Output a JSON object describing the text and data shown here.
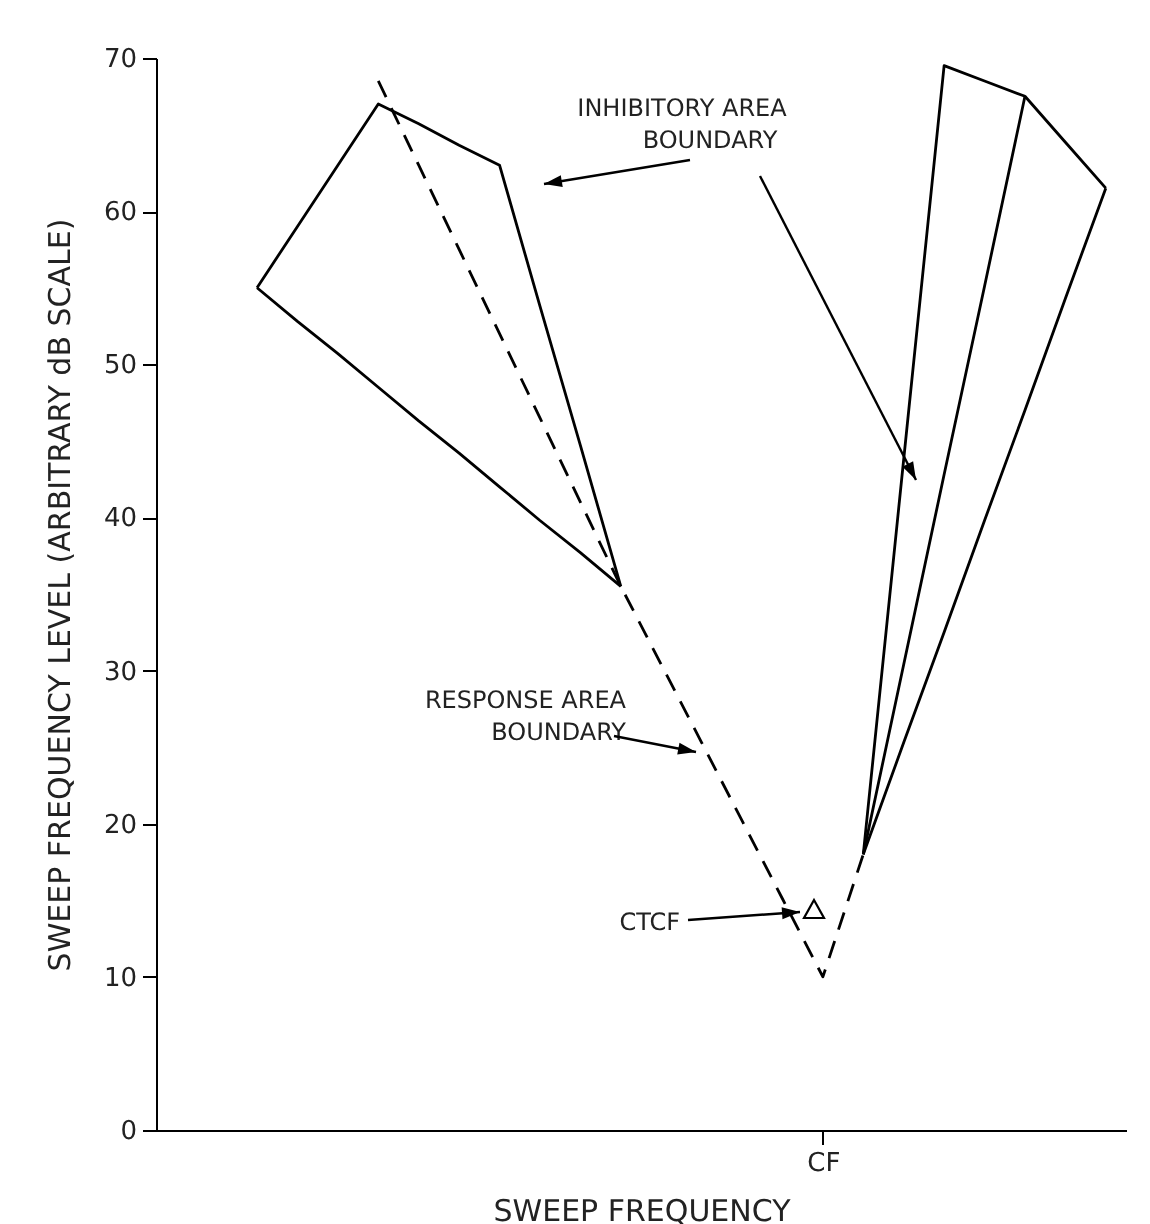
{
  "chart_data": {
    "type": "line",
    "xlabel": "SWEEP FREQUENCY",
    "ylabel": "SWEEP FREQUENCY LEVEL (ARBITRARY dB SCALE)",
    "categories": [
      null,
      null,
      null,
      null,
      null,
      null,
      null,
      null,
      null,
      null,
      null,
      null,
      null,
      null,
      null,
      null,
      "CF",
      null,
      null,
      null,
      null,
      null,
      null,
      null
    ],
    "ylim": [
      0,
      70
    ],
    "yticks": [
      0,
      10,
      20,
      30,
      40,
      50,
      60,
      70
    ],
    "series": [
      {
        "color": "#000000",
        "line_style": "dashed",
        "values": [
          null,
          null,
          null,
          null,
          null,
          68.5,
          63,
          57.5,
          52,
          46.5,
          41,
          35.5,
          30.4,
          25.3,
          20.2,
          15.1,
          10,
          18,
          null,
          null,
          null,
          null,
          null,
          null
        ]
      },
      {
        "color": "#000000",
        "line_style": "solid",
        "values": [
          null,
          null,
          55,
          59,
          63,
          67,
          65.7,
          64.3,
          63,
          53.8,
          44.7,
          35.5,
          null,
          null,
          null,
          null,
          null,
          null,
          null,
          null,
          null,
          null,
          null,
          null
        ]
      },
      {
        "color": "#000000",
        "line_style": "solid",
        "values": [
          null,
          null,
          55,
          52.8,
          50.7,
          48.5,
          46.3,
          44.2,
          42,
          39.8,
          37.7,
          35.5,
          null,
          null,
          null,
          null,
          null,
          null,
          null,
          null,
          null,
          null,
          null,
          null
        ]
      },
      {
        "color": "#000000",
        "line_style": "solid",
        "values": [
          null,
          null,
          null,
          null,
          null,
          null,
          null,
          null,
          null,
          null,
          null,
          null,
          null,
          null,
          null,
          null,
          null,
          18,
          43.8,
          69.5,
          68.5,
          67.5,
          64.5,
          61.5
        ]
      },
      {
        "color": "#000000",
        "line_style": "solid",
        "values": [
          null,
          null,
          null,
          null,
          null,
          null,
          null,
          null,
          null,
          null,
          null,
          null,
          null,
          null,
          null,
          null,
          null,
          18,
          30.4,
          42.8,
          55.1,
          67.5,
          null,
          null
        ]
      },
      {
        "color": "#000000",
        "line_style": "solid",
        "values": [
          null,
          null,
          null,
          null,
          null,
          null,
          null,
          null,
          null,
          null,
          null,
          null,
          null,
          null,
          null,
          null,
          null,
          18,
          25.3,
          32.5,
          39.8,
          47,
          54.3,
          61.5
        ]
      }
    ],
    "annotations": [
      "INHIBITORY AREA BOUNDARY",
      "RESPONSE AREA BOUNDARY",
      "CTCF"
    ]
  }
}
